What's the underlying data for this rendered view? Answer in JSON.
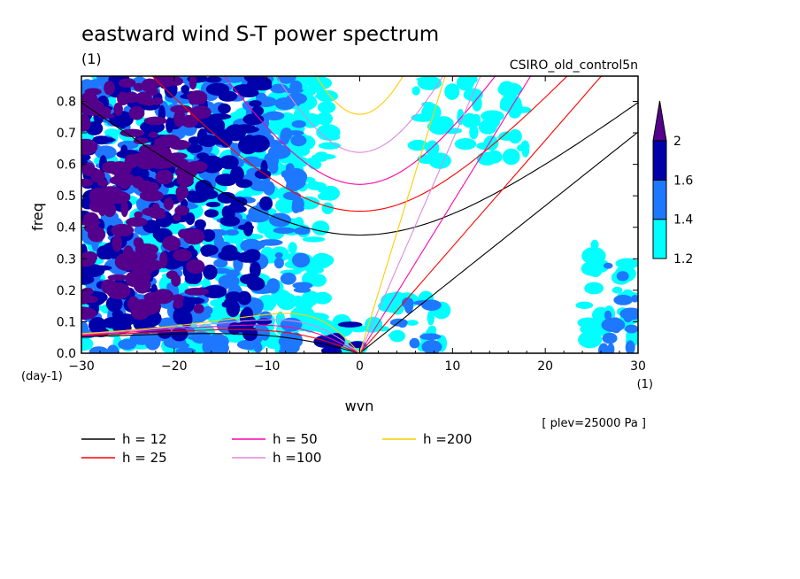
{
  "chart_data": {
    "type": "heatmap",
    "title": "eastward wind S-T power spectrum",
    "subtitle_left": "(1)",
    "subtitle_right": "CSIRO_old_control5n",
    "xlabel": "wvn",
    "ylabel": "freq",
    "xunit": "(1)",
    "yunit": "(day-1)",
    "annotation": "[ plev=25000 Pa ]",
    "xlim": [
      -30,
      30
    ],
    "ylim": [
      0,
      0.88
    ],
    "xticks": [
      "−30",
      "−20",
      "−10",
      "0",
      "10",
      "20",
      "30"
    ],
    "xtick_values": [
      -30,
      -20,
      -10,
      0,
      10,
      20,
      30
    ],
    "yticks": [
      "0.0",
      "0.1",
      "0.2",
      "0.3",
      "0.4",
      "0.5",
      "0.6",
      "0.7",
      "0.8"
    ],
    "ytick_values": [
      0,
      0.1,
      0.2,
      0.3,
      0.4,
      0.5,
      0.6,
      0.7,
      0.8
    ],
    "colorbar": {
      "levels": [
        "1.2",
        "1.4",
        "1.6",
        "2"
      ],
      "level_values": [
        1.2,
        1.4,
        1.6,
        2.0
      ],
      "colors": [
        "#00ffff",
        "#1e78ff",
        "#0000aa",
        "#55008c"
      ],
      "extend": "max"
    },
    "fill_colors": {
      "light": "#00ffff",
      "mid": "#1e78ff",
      "dark": "#0000aa",
      "max": "#55008c"
    },
    "dispersion_curves": [
      {
        "name": "h = 12",
        "h": 12,
        "color": "#000000"
      },
      {
        "name": "h = 25",
        "h": 25,
        "color": "#ff0000"
      },
      {
        "name": "h = 50",
        "h": 50,
        "color": "#ff00aa"
      },
      {
        "name": "h =100",
        "h": 100,
        "color": "#dd88dd"
      },
      {
        "name": "h =200",
        "h": 200,
        "color": "#ffcc00"
      }
    ],
    "power_regions": [
      {
        "level": 2.0,
        "x": [
          -30,
          -17
        ],
        "y": [
          0.12,
          0.88
        ]
      },
      {
        "level": 1.6,
        "x": [
          -30,
          -10
        ],
        "y": [
          0.05,
          0.88
        ]
      },
      {
        "level": 1.4,
        "x": [
          -30,
          -6
        ],
        "y": [
          0.0,
          0.88
        ]
      },
      {
        "level": 1.2,
        "x": [
          -30,
          -3
        ],
        "y": [
          0.0,
          0.88
        ]
      },
      {
        "level": 1.2,
        "x": [
          24,
          30
        ],
        "y": [
          0.0,
          0.35
        ]
      },
      {
        "level": 1.4,
        "x": [
          26,
          30
        ],
        "y": [
          0.0,
          0.28
        ]
      },
      {
        "level": 1.2,
        "x": [
          2,
          9
        ],
        "y": [
          0.0,
          0.2
        ]
      },
      {
        "level": 1.4,
        "x": [
          4,
          8
        ],
        "y": [
          0.0,
          0.16
        ]
      },
      {
        "level": 1.2,
        "x": [
          -5,
          3
        ],
        "y": [
          0.0,
          0.12
        ]
      },
      {
        "level": 1.6,
        "x": [
          -4,
          0
        ],
        "y": [
          0.0,
          0.1
        ]
      },
      {
        "level": 1.2,
        "x": [
          6,
          18
        ],
        "y": [
          0.6,
          0.88
        ]
      },
      {
        "level": 1.2,
        "x": [
          -10,
          -3
        ],
        "y": [
          0.55,
          0.88
        ]
      }
    ]
  }
}
